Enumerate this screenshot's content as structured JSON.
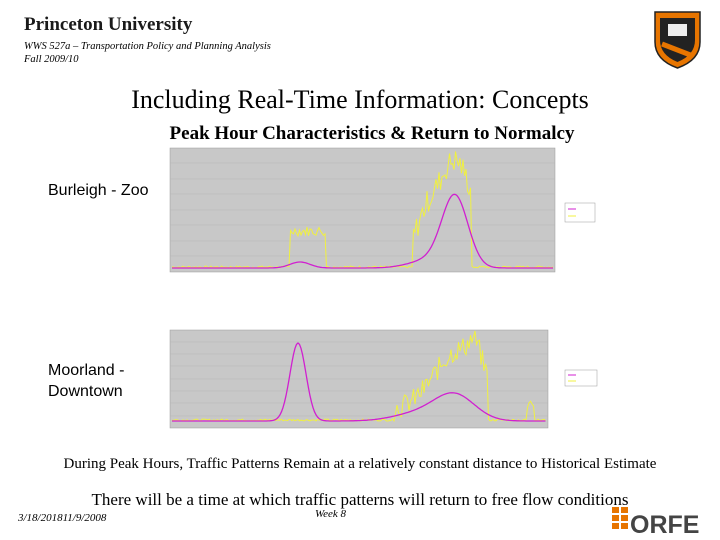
{
  "header": {
    "university": "Princeton University",
    "course": "WWS 527a – Transportation Policy and Planning Analysis",
    "term": "Fall 2009/10"
  },
  "title": "Including Real-Time Information: Concepts",
  "subtitle": "Peak Hour Characteristics & Return to Normalcy",
  "charts": [
    {
      "label": [
        "Burleigh - Zoo"
      ]
    },
    {
      "label": [
        "Moorland -",
        "Downtown"
      ]
    }
  ],
  "notes": [
    "During Peak Hours, Traffic Patterns Remain at a relatively constant distance to Historical Estimate",
    "There will be a time at which traffic patterns will return to free flow conditions"
  ],
  "footer": {
    "date": "3/18/201811/9/2008",
    "week": "Week 8",
    "logo": "ORFE"
  }
}
